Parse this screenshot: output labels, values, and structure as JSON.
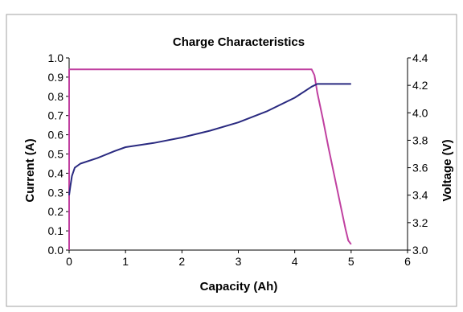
{
  "chart_data": {
    "type": "line",
    "title": "Charge Characteristics",
    "xlabel": "Capacity (Ah)",
    "ylabel_left": "Current (A)",
    "ylabel_right": "Voltage (V)",
    "xlim": [
      0,
      6
    ],
    "ylim_left": [
      0.0,
      1.0
    ],
    "ylim_right": [
      3.0,
      4.4
    ],
    "x_ticks": [
      "0",
      "1",
      "2",
      "3",
      "4",
      "5",
      "6"
    ],
    "y_left_ticks": [
      "0.0",
      "0.1",
      "0.2",
      "0.3",
      "0.4",
      "0.5",
      "0.6",
      "0.7",
      "0.8",
      "0.9",
      "1.0"
    ],
    "y_right_ticks": [
      "3.0",
      "3.2",
      "3.4",
      "3.6",
      "3.8",
      "4.0",
      "4.2",
      "4.4"
    ],
    "grid": false,
    "legend": "none",
    "series": [
      {
        "axis": "left",
        "color": "#c040a0",
        "points": [
          [
            0.0,
            0.0
          ],
          [
            0.0,
            0.94
          ],
          [
            0.5,
            0.94
          ],
          [
            1.0,
            0.94
          ],
          [
            2.0,
            0.94
          ],
          [
            3.0,
            0.94
          ],
          [
            4.0,
            0.94
          ],
          [
            4.3,
            0.94
          ],
          [
            4.35,
            0.91
          ],
          [
            4.4,
            0.82
          ],
          [
            4.5,
            0.68
          ],
          [
            4.6,
            0.53
          ],
          [
            4.7,
            0.39
          ],
          [
            4.8,
            0.25
          ],
          [
            4.9,
            0.11
          ],
          [
            4.95,
            0.05
          ],
          [
            5.0,
            0.03
          ]
        ]
      },
      {
        "axis": "right",
        "color": "#2a2a80",
        "points": [
          [
            0.0,
            3.4
          ],
          [
            0.02,
            3.46
          ],
          [
            0.05,
            3.54
          ],
          [
            0.1,
            3.6
          ],
          [
            0.2,
            3.63
          ],
          [
            0.5,
            3.67
          ],
          [
            0.8,
            3.72
          ],
          [
            1.0,
            3.75
          ],
          [
            1.5,
            3.78
          ],
          [
            2.0,
            3.82
          ],
          [
            2.5,
            3.87
          ],
          [
            3.0,
            3.93
          ],
          [
            3.5,
            4.01
          ],
          [
            4.0,
            4.11
          ],
          [
            4.3,
            4.19
          ],
          [
            4.4,
            4.21
          ],
          [
            4.7,
            4.21
          ],
          [
            5.0,
            4.21
          ]
        ]
      }
    ]
  }
}
